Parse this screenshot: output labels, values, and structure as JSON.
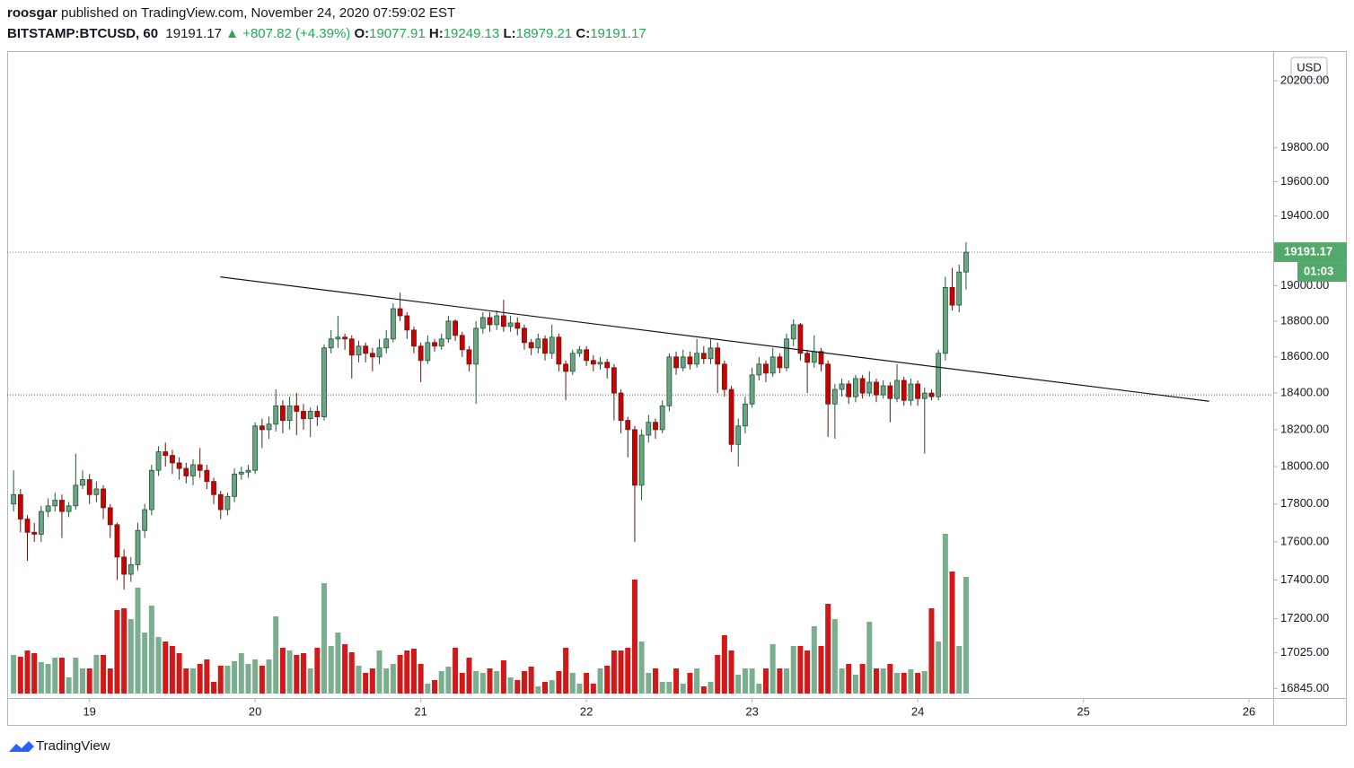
{
  "header": {
    "publisher": "roosgar",
    "published": " published on TradingView.com, November 24, 2020 07:59:02 EST",
    "symbol": "BITSTAMP:BTCUSD, 60",
    "change": "+807.82 (+4.39%)",
    "o_label": "O:",
    "h_label": "H:",
    "l_label": "L:",
    "c_label": "C:"
  },
  "footer": {
    "logo": "TradingView"
  },
  "chart_data": {
    "type": "candlestick",
    "up_color": "#6ba583",
    "down_color": "#cc0000",
    "log_scale": true,
    "currency": "USD",
    "countdown": "01:03",
    "xlim": [
      18.503,
      26.146
    ],
    "xticks": [
      19,
      20,
      21,
      22,
      23,
      24,
      25,
      26
    ],
    "ylim": [
      16797,
      20380
    ],
    "yticks": [
      {
        "value": 20200,
        "label": "20200.00"
      },
      {
        "value": 19800,
        "label": "19800.00"
      },
      {
        "value": 19600,
        "label": "19600.00"
      },
      {
        "value": 19400,
        "label": "19400.00"
      },
      {
        "value": 19000,
        "label": "19000.00"
      },
      {
        "value": 18800,
        "label": "18800.00"
      },
      {
        "value": 18600,
        "label": "18600.00"
      },
      {
        "value": 18400,
        "label": "18400.00"
      },
      {
        "value": 18200,
        "label": "18200.00"
      },
      {
        "value": 18000,
        "label": "18000.00"
      },
      {
        "value": 17800,
        "label": "17800.00"
      },
      {
        "value": 17600,
        "label": "17600.00"
      },
      {
        "value": 17400,
        "label": "17400.00"
      },
      {
        "value": 17200,
        "label": "17200.00"
      },
      {
        "value": 17025,
        "label": "17025.00"
      },
      {
        "value": 16845,
        "label": "16845.00"
      }
    ],
    "trendline": {
      "x": [
        19.79,
        25.76
      ],
      "y": [
        19050,
        18355
      ]
    },
    "hlines": [
      18390
    ],
    "x": [
      18.5417,
      18.5833,
      18.625,
      18.6667,
      18.7083,
      18.75,
      18.7917,
      18.8333,
      18.875,
      18.9167,
      18.9583,
      19,
      19.0417,
      19.0833,
      19.125,
      19.1667,
      19.2083,
      19.25,
      19.2917,
      19.3333,
      19.375,
      19.4167,
      19.4583,
      19.5,
      19.5417,
      19.5833,
      19.625,
      19.6667,
      19.7083,
      19.75,
      19.7917,
      19.8333,
      19.875,
      19.9167,
      19.9583,
      20,
      20.0417,
      20.0833,
      20.125,
      20.1667,
      20.2083,
      20.25,
      20.2917,
      20.3333,
      20.375,
      20.4167,
      20.4583,
      20.5,
      20.5417,
      20.5833,
      20.625,
      20.6667,
      20.7083,
      20.75,
      20.7917,
      20.8333,
      20.875,
      20.9167,
      20.9583,
      21,
      21.0417,
      21.0833,
      21.125,
      21.1667,
      21.2083,
      21.25,
      21.2917,
      21.3333,
      21.375,
      21.4167,
      21.4583,
      21.5,
      21.5417,
      21.5833,
      21.625,
      21.6667,
      21.7083,
      21.75,
      21.7917,
      21.8333,
      21.875,
      21.9167,
      21.9583,
      22,
      22.0417,
      22.0833,
      22.125,
      22.1667,
      22.2083,
      22.25,
      22.2917,
      22.3333,
      22.375,
      22.4167,
      22.4583,
      22.5,
      22.5417,
      22.5833,
      22.625,
      22.6667,
      22.7083,
      22.75,
      22.7917,
      22.8333,
      22.875,
      22.9167,
      22.9583,
      23,
      23.0417,
      23.0833,
      23.125,
      23.1667,
      23.2083,
      23.25,
      23.2917,
      23.3333,
      23.375,
      23.4167,
      23.4583,
      23.5,
      23.5417,
      23.5833,
      23.625,
      23.6667,
      23.7083,
      23.75,
      23.7917,
      23.8333,
      23.875,
      23.9167,
      23.9583,
      24,
      24.0417,
      24.0833,
      24.125,
      24.1667,
      24.2083,
      24.25,
      24.2917
    ],
    "open": [
      17800,
      17850,
      17720,
      17650,
      17640,
      17760,
      17790,
      17820,
      17760,
      17790,
      17900,
      17930,
      17850,
      17880,
      17780,
      17690,
      17520,
      17430,
      17480,
      17660,
      17770,
      17980,
      18080,
      18060,
      18020,
      17990,
      17950,
      18010,
      17980,
      17920,
      17850,
      17770,
      17840,
      17960,
      17970,
      17980,
      18220,
      18200,
      18230,
      18330,
      18250,
      18330,
      18300,
      18260,
      18300,
      18270,
      18650,
      18700,
      18710,
      18700,
      18610,
      18660,
      18620,
      18600,
      18650,
      18700,
      18870,
      18830,
      18750,
      18660,
      18580,
      18680,
      18660,
      18700,
      18800,
      18720,
      18640,
      18560,
      18760,
      18820,
      18780,
      18830,
      18770,
      18790,
      18760,
      18680,
      18650,
      18700,
      18620,
      18710,
      18560,
      18520,
      18620,
      18640,
      18580,
      18560,
      18570,
      18540,
      18400,
      18250,
      18200,
      17900,
      18170,
      18240,
      18200,
      18330,
      18600,
      18540,
      18600,
      18560,
      18620,
      18590,
      18650,
      18560,
      18420,
      18120,
      18220,
      18340,
      18500,
      18560,
      18510,
      18600,
      18540,
      18700,
      18780,
      18620,
      18570,
      18630,
      18560,
      18340,
      18420,
      18450,
      18380,
      18480,
      18400,
      18460,
      18390,
      18440,
      18370,
      18470,
      18360,
      18450,
      18370,
      18400,
      18380,
      18620,
      18990,
      18890,
      19077.91
    ],
    "high": [
      17980,
      17880,
      17740,
      17700,
      17790,
      17830,
      17860,
      17850,
      17810,
      18070,
      17980,
      17960,
      17920,
      17900,
      17800,
      17700,
      17560,
      17520,
      17700,
      17800,
      18010,
      18110,
      18130,
      18090,
      18050,
      18020,
      18040,
      18100,
      18010,
      17940,
      17870,
      17860,
      17990,
      18000,
      18010,
      18240,
      18260,
      18270,
      18420,
      18360,
      18380,
      18400,
      18340,
      18320,
      18330,
      18670,
      18750,
      18830,
      18730,
      18720,
      18690,
      18680,
      18650,
      18700,
      18750,
      18900,
      18960,
      18850,
      18770,
      18680,
      18720,
      18700,
      18730,
      18830,
      18810,
      18740,
      18660,
      18800,
      18850,
      18850,
      18860,
      18920,
      18830,
      18820,
      18780,
      18700,
      18730,
      18720,
      18780,
      18730,
      18580,
      18640,
      18660,
      18660,
      18610,
      18600,
      18590,
      18560,
      18420,
      18270,
      18220,
      18200,
      18280,
      18260,
      18360,
      18620,
      18630,
      18640,
      18630,
      18700,
      18660,
      18700,
      18680,
      18580,
      18440,
      18260,
      18380,
      18540,
      18600,
      18580,
      18650,
      18620,
      18730,
      18810,
      18790,
      18640,
      18720,
      18650,
      18580,
      18450,
      18480,
      18470,
      18500,
      18500,
      18520,
      18480,
      18470,
      18460,
      18560,
      18490,
      18480,
      18470,
      18430,
      18420,
      18640,
      19050,
      19100,
      19120,
      19249.13
    ],
    "low": [
      17760,
      17650,
      17500,
      17600,
      17600,
      17730,
      17760,
      17620,
      17730,
      17770,
      17880,
      17800,
      17810,
      17720,
      17620,
      17400,
      17350,
      17390,
      17450,
      17620,
      17740,
      17950,
      18000,
      17960,
      17930,
      17910,
      17900,
      17940,
      17880,
      17800,
      17720,
      17740,
      17810,
      17930,
      17940,
      17960,
      18100,
      18150,
      18190,
      18180,
      18200,
      18170,
      18200,
      18160,
      18220,
      18250,
      18620,
      18650,
      18640,
      18480,
      18570,
      18570,
      18520,
      18560,
      18620,
      18680,
      18800,
      18700,
      18620,
      18460,
      18560,
      18630,
      18640,
      18680,
      18690,
      18600,
      18520,
      18340,
      18730,
      18740,
      18750,
      18740,
      18740,
      18720,
      18640,
      18610,
      18620,
      18580,
      18590,
      18520,
      18360,
      18500,
      18600,
      18550,
      18520,
      18530,
      18480,
      18250,
      18180,
      18050,
      17600,
      17820,
      18130,
      18150,
      18180,
      18300,
      18500,
      18520,
      18530,
      18540,
      18560,
      18560,
      18400,
      18380,
      18080,
      18000,
      18180,
      18320,
      18470,
      18460,
      18490,
      18510,
      18520,
      18660,
      18580,
      18400,
      18540,
      18520,
      18160,
      18150,
      18380,
      18340,
      18350,
      18370,
      18380,
      18350,
      18370,
      18240,
      18350,
      18330,
      18330,
      18330,
      18070,
      18360,
      18360,
      18580,
      18860,
      18850,
      18979.21
    ],
    "close": [
      17850,
      17720,
      17650,
      17640,
      17760,
      17790,
      17820,
      17760,
      17790,
      17900,
      17930,
      17850,
      17880,
      17780,
      17690,
      17520,
      17430,
      17480,
      17660,
      17770,
      17980,
      18080,
      18060,
      18020,
      17990,
      17950,
      18010,
      17980,
      17920,
      17850,
      17770,
      17840,
      17960,
      17970,
      17980,
      18220,
      18200,
      18230,
      18330,
      18250,
      18330,
      18300,
      18260,
      18300,
      18270,
      18650,
      18700,
      18710,
      18700,
      18610,
      18660,
      18620,
      18600,
      18650,
      18700,
      18870,
      18830,
      18750,
      18660,
      18580,
      18680,
      18660,
      18700,
      18800,
      18720,
      18640,
      18560,
      18760,
      18820,
      18780,
      18830,
      18770,
      18790,
      18760,
      18680,
      18650,
      18700,
      18620,
      18710,
      18560,
      18520,
      18620,
      18640,
      18580,
      18560,
      18570,
      18540,
      18400,
      18250,
      18200,
      17900,
      18170,
      18240,
      18200,
      18330,
      18600,
      18540,
      18600,
      18560,
      18620,
      18590,
      18650,
      18560,
      18420,
      18120,
      18220,
      18340,
      18500,
      18560,
      18510,
      18600,
      18540,
      18700,
      18780,
      18620,
      18570,
      18630,
      18560,
      18340,
      18420,
      18450,
      18380,
      18480,
      18400,
      18460,
      18390,
      18440,
      18370,
      18470,
      18360,
      18450,
      18370,
      18400,
      18380,
      18620,
      18990,
      18890,
      19077.91,
      19191.17
    ],
    "volume": [
      215,
      205,
      240,
      225,
      175,
      165,
      200,
      200,
      90,
      200,
      140,
      140,
      215,
      215,
      140,
      465,
      475,
      415,
      590,
      340,
      490,
      315,
      290,
      265,
      225,
      140,
      140,
      165,
      190,
      65,
      155,
      155,
      180,
      225,
      165,
      190,
      155,
      190,
      430,
      255,
      240,
      215,
      225,
      140,
      255,
      615,
      265,
      340,
      275,
      230,
      155,
      115,
      140,
      240,
      140,
      165,
      215,
      240,
      250,
      165,
      55,
      75,
      125,
      150,
      255,
      115,
      200,
      125,
      115,
      140,
      125,
      185,
      90,
      75,
      125,
      150,
      40,
      65,
      75,
      125,
      255,
      115,
      55,
      115,
      55,
      140,
      155,
      240,
      240,
      255,
      635,
      290,
      115,
      140,
      65,
      65,
      140,
      55,
      115,
      140,
      40,
      65,
      215,
      325,
      240,
      105,
      140,
      140,
      55,
      140,
      275,
      140,
      140,
      265,
      265,
      240,
      375,
      265,
      500,
      415,
      140,
      165,
      105,
      165,
      400,
      140,
      140,
      165,
      115,
      115,
      135,
      115,
      125,
      475,
      290,
      890,
      680,
      265,
      650
    ]
  }
}
